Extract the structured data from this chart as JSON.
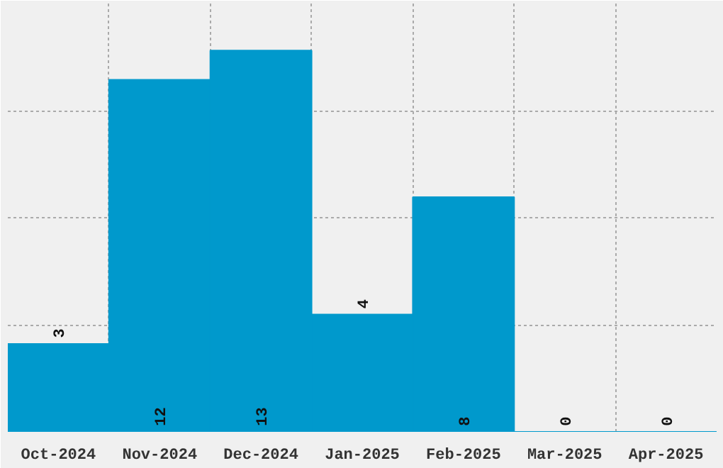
{
  "chart_data": {
    "type": "bar",
    "categories": [
      "Oct-2024",
      "Nov-2024",
      "Dec-2024",
      "Jan-2025",
      "Feb-2025",
      "Mar-2025",
      "Apr-2025"
    ],
    "values": [
      3,
      12,
      13,
      4,
      8,
      0,
      0
    ],
    "color": "#0099cc",
    "ylim": [
      0,
      14.6
    ],
    "yticks": [
      {
        "value": 3.65,
        "label": null
      },
      {
        "value": 7.3,
        "label": null
      },
      {
        "value": 10.95,
        "label": null
      }
    ],
    "tick_labels": "x",
    "grid": true,
    "data_labels": true
  }
}
